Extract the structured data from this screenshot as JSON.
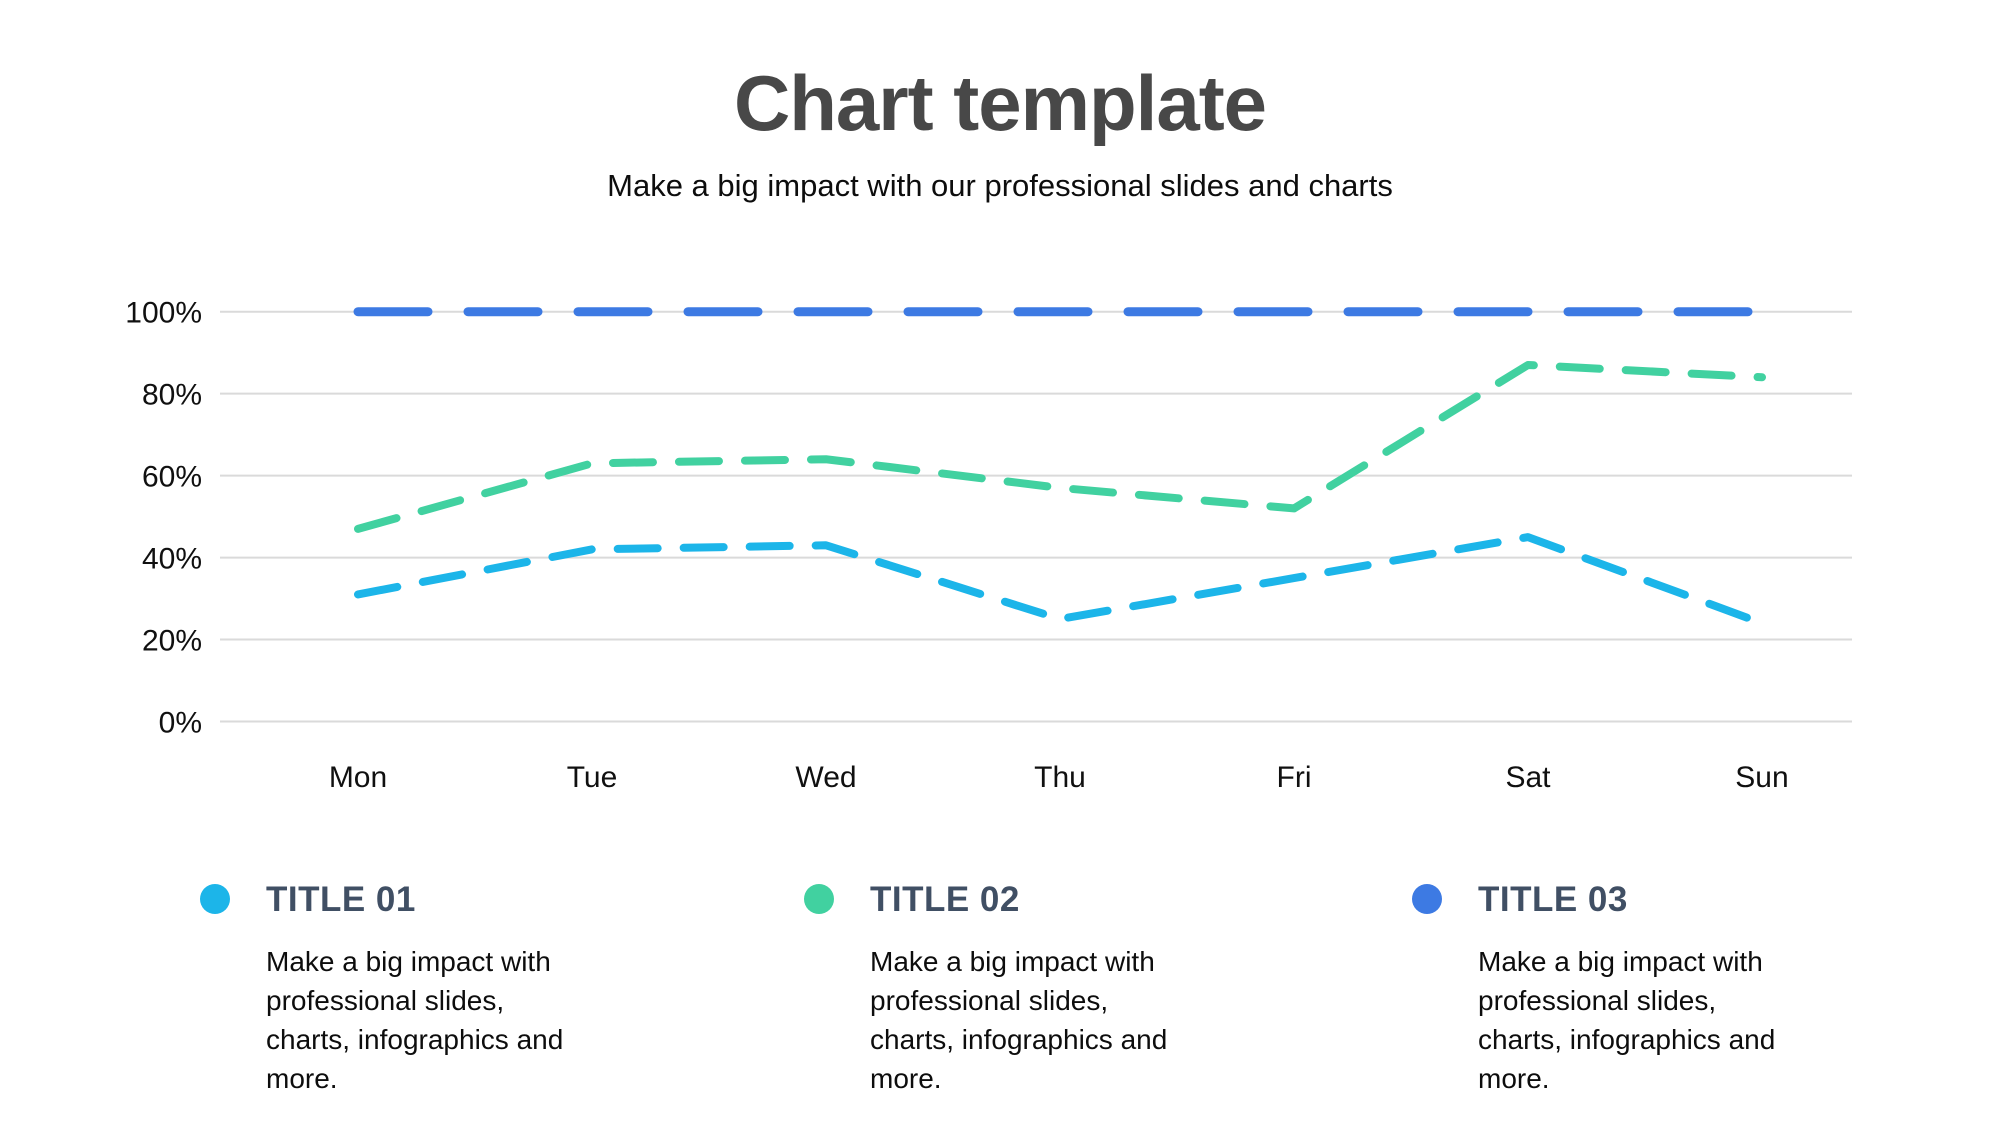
{
  "header": {
    "title": "Chart template",
    "subtitle": "Make a big impact with our professional slides and charts"
  },
  "chart_data": {
    "type": "line",
    "title": "Chart template",
    "categories": [
      "Mon",
      "Tue",
      "Wed",
      "Thu",
      "Fri",
      "Sat",
      "Sun"
    ],
    "y_ticks": [
      {
        "value": 0,
        "label": "0%"
      },
      {
        "value": 20,
        "label": "20%"
      },
      {
        "value": 40,
        "label": "40%"
      },
      {
        "value": 60,
        "label": "60%"
      },
      {
        "value": 80,
        "label": "80%"
      },
      {
        "value": 100,
        "label": "100%"
      }
    ],
    "ylim": [
      0,
      100
    ],
    "grid": true,
    "line_style": "dashed",
    "legend_position": "bottom",
    "gridline_color": "#dadada",
    "series": [
      {
        "name": "TITLE 03",
        "color": "#3d7ae3",
        "values": [
          100,
          100,
          100,
          100,
          100,
          100,
          100
        ],
        "stroke_width": 9,
        "dash": "70 40"
      },
      {
        "name": "TITLE 02",
        "color": "#41d1a0",
        "values": [
          47,
          63,
          64,
          57,
          52,
          87,
          84
        ],
        "stroke_width": 8,
        "dash": "40 26"
      },
      {
        "name": "TITLE 01",
        "color": "#1cb5e9",
        "values": [
          31,
          42,
          43,
          25,
          35,
          45,
          24
        ],
        "stroke_width": 8,
        "dash": "40 26"
      }
    ]
  },
  "legend": {
    "items": [
      {
        "title": "TITLE 01",
        "color": "#1cb5e9",
        "description": "Make a big impact with\nprofessional slides,\ncharts, infographics and\nmore."
      },
      {
        "title": "TITLE 02",
        "color": "#41d1a0",
        "description": "Make a big impact with\nprofessional slides,\ncharts, infographics and\nmore."
      },
      {
        "title": "TITLE 03",
        "color": "#3d7ae3",
        "description": "Make a big impact with\nprofessional slides,\ncharts, infographics and\nmore."
      }
    ]
  }
}
